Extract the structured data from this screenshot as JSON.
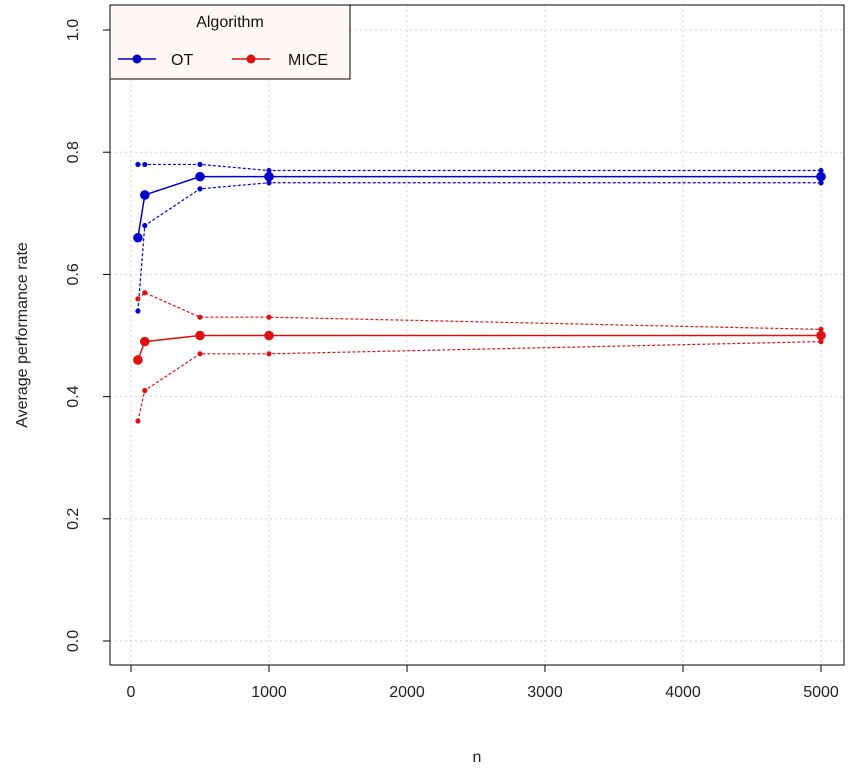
{
  "chart_data": {
    "type": "line",
    "title": "",
    "xlabel": "n",
    "ylabel": "Average performance rate",
    "xlim": [
      0,
      5000
    ],
    "ylim": [
      0,
      1
    ],
    "x_ticks": [
      0,
      1000,
      2000,
      3000,
      4000,
      5000
    ],
    "y_ticks": [
      0.0,
      0.2,
      0.4,
      0.6,
      0.8,
      1.0
    ],
    "y_tick_labels": [
      "0.0",
      "0.2",
      "0.4",
      "0.6",
      "0.8",
      "1.0"
    ],
    "grid": true,
    "legend": {
      "title": "Algorithm",
      "position": "top-left"
    },
    "x": [
      50,
      100,
      500,
      1000,
      5000
    ],
    "series": [
      {
        "name": "OT",
        "color": "#0000cc",
        "mean": [
          0.66,
          0.73,
          0.76,
          0.76,
          0.76
        ],
        "upper": [
          0.78,
          0.78,
          0.78,
          0.77,
          0.77
        ],
        "lower": [
          0.54,
          0.68,
          0.74,
          0.75,
          0.75
        ]
      },
      {
        "name": "MICE",
        "color": "#dd1111",
        "mean": [
          0.46,
          0.49,
          0.5,
          0.5,
          0.5
        ],
        "upper": [
          0.56,
          0.57,
          0.53,
          0.53,
          0.51
        ],
        "lower": [
          0.36,
          0.41,
          0.47,
          0.47,
          0.49
        ]
      }
    ]
  }
}
